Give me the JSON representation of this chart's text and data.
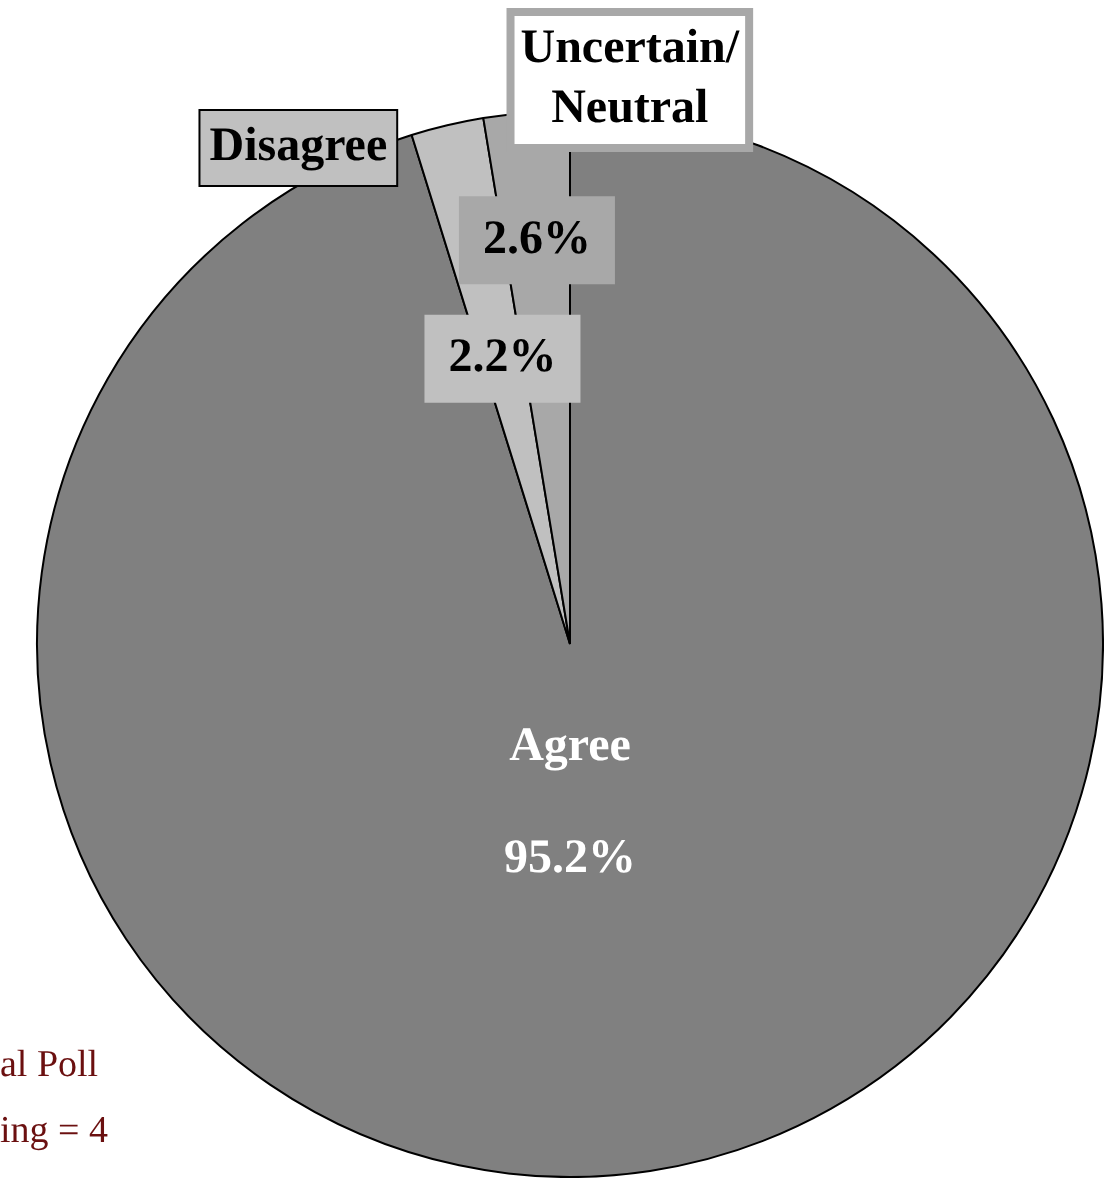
{
  "chart_data": {
    "type": "pie",
    "categories": [
      "Agree",
      "Disagree",
      "Uncertain/\nNeutral"
    ],
    "values": [
      95.2,
      2.2,
      2.6
    ],
    "colors": [
      "#808080",
      "#c0c0c0",
      "#a8a8a8"
    ],
    "value_labels": [
      "95.2%",
      "2.2%",
      "2.6%"
    ],
    "legend": false,
    "annotations": [
      "al Poll",
      "ing = 4"
    ]
  }
}
